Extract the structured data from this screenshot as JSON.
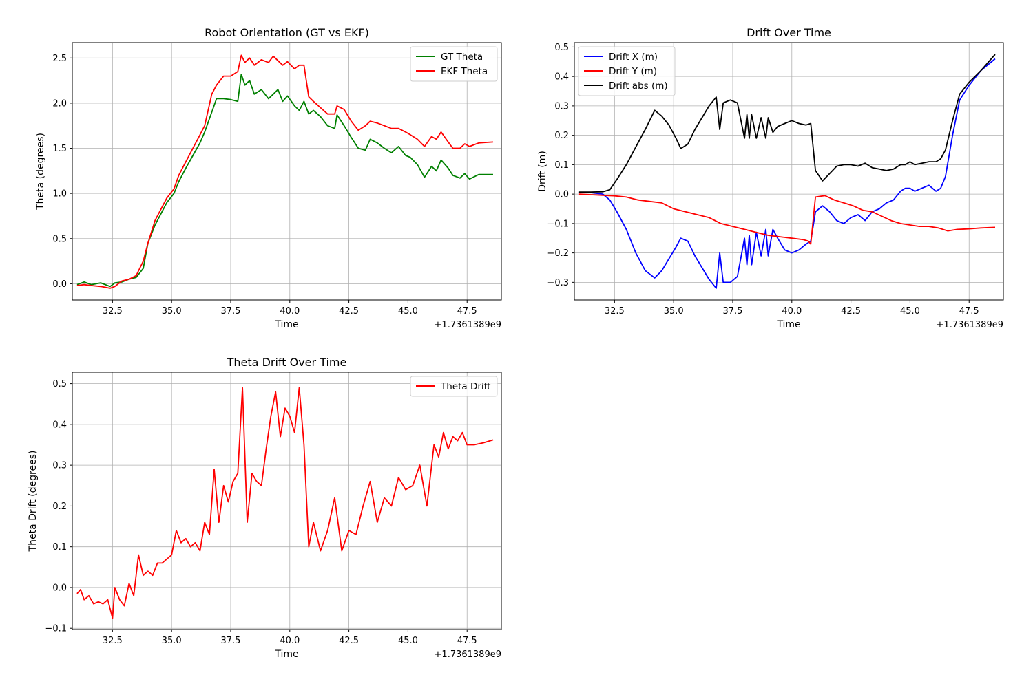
{
  "chart_data": [
    {
      "type": "line",
      "title": "Robot Orientation (GT vs EKF)",
      "xlabel": "Time",
      "ylabel": "Theta (degrees)",
      "offset_label": "+1.7361389e9",
      "xlim": [
        30.8,
        48.95
      ],
      "ylim": [
        -0.18,
        2.67
      ],
      "xticks": [
        32.5,
        35.0,
        37.5,
        40.0,
        42.5,
        45.0,
        47.5
      ],
      "xtick_labels": [
        "32.5",
        "35.0",
        "37.5",
        "40.0",
        "42.5",
        "45.0",
        "47.5"
      ],
      "yticks": [
        0.0,
        0.5,
        1.0,
        1.5,
        2.0,
        2.5
      ],
      "ytick_labels": [
        "0.0",
        "0.5",
        "1.0",
        "1.5",
        "2.0",
        "2.5"
      ],
      "grid": true,
      "legend": "upper right",
      "series": [
        {
          "name": "GT Theta",
          "color": "#008000",
          "x": [
            31.0,
            31.3,
            31.6,
            32.0,
            32.4,
            32.6,
            32.9,
            33.2,
            33.5,
            33.8,
            34.0,
            34.3,
            34.6,
            34.8,
            35.1,
            35.3,
            35.6,
            35.9,
            36.2,
            36.4,
            36.7,
            36.9,
            37.2,
            37.5,
            37.8,
            37.95,
            38.1,
            38.3,
            38.5,
            38.8,
            39.1,
            39.3,
            39.5,
            39.7,
            39.9,
            40.2,
            40.4,
            40.6,
            40.8,
            41.0,
            41.3,
            41.6,
            41.9,
            42.0,
            42.3,
            42.6,
            42.9,
            43.2,
            43.4,
            43.7,
            44.0,
            44.3,
            44.6,
            44.9,
            45.1,
            45.4,
            45.7,
            46.0,
            46.2,
            46.4,
            46.7,
            46.9,
            47.2,
            47.4,
            47.6,
            48.0,
            48.6
          ],
          "y": [
            -0.01,
            0.02,
            -0.01,
            0.01,
            -0.03,
            0.01,
            0.02,
            0.05,
            0.07,
            0.17,
            0.45,
            0.65,
            0.8,
            0.9,
            1.0,
            1.13,
            1.28,
            1.42,
            1.56,
            1.68,
            1.9,
            2.05,
            2.05,
            2.04,
            2.02,
            2.32,
            2.2,
            2.25,
            2.1,
            2.15,
            2.05,
            2.1,
            2.15,
            2.02,
            2.08,
            1.97,
            1.92,
            2.02,
            1.88,
            1.92,
            1.85,
            1.75,
            1.72,
            1.87,
            1.75,
            1.62,
            1.5,
            1.48,
            1.6,
            1.56,
            1.5,
            1.45,
            1.52,
            1.42,
            1.4,
            1.32,
            1.18,
            1.3,
            1.25,
            1.37,
            1.28,
            1.2,
            1.17,
            1.22,
            1.16,
            1.21,
            1.21
          ]
        },
        {
          "name": "EKF Theta",
          "color": "#ff0000",
          "x": [
            31.0,
            31.3,
            31.6,
            32.0,
            32.4,
            32.6,
            32.9,
            33.2,
            33.5,
            33.8,
            34.0,
            34.3,
            34.6,
            34.8,
            35.1,
            35.3,
            35.6,
            35.9,
            36.2,
            36.4,
            36.7,
            36.9,
            37.2,
            37.5,
            37.8,
            37.95,
            38.1,
            38.3,
            38.5,
            38.8,
            39.1,
            39.3,
            39.5,
            39.7,
            39.9,
            40.2,
            40.4,
            40.6,
            40.8,
            41.0,
            41.3,
            41.6,
            41.9,
            42.0,
            42.3,
            42.6,
            42.9,
            43.2,
            43.4,
            43.7,
            44.0,
            44.3,
            44.6,
            44.9,
            45.1,
            45.4,
            45.7,
            46.0,
            46.2,
            46.4,
            46.7,
            46.9,
            47.2,
            47.4,
            47.6,
            48.0,
            48.6
          ],
          "y": [
            -0.02,
            -0.01,
            -0.02,
            -0.03,
            -0.05,
            -0.03,
            0.03,
            0.05,
            0.09,
            0.25,
            0.45,
            0.7,
            0.85,
            0.95,
            1.05,
            1.2,
            1.35,
            1.5,
            1.65,
            1.75,
            2.1,
            2.2,
            2.3,
            2.3,
            2.35,
            2.53,
            2.45,
            2.5,
            2.42,
            2.48,
            2.45,
            2.52,
            2.47,
            2.42,
            2.46,
            2.38,
            2.42,
            2.42,
            2.07,
            2.02,
            1.95,
            1.88,
            1.88,
            1.97,
            1.93,
            1.8,
            1.7,
            1.75,
            1.8,
            1.78,
            1.75,
            1.72,
            1.72,
            1.68,
            1.65,
            1.6,
            1.52,
            1.63,
            1.6,
            1.68,
            1.57,
            1.5,
            1.5,
            1.55,
            1.52,
            1.56,
            1.57
          ]
        }
      ]
    },
    {
      "type": "line",
      "title": "Drift Over Time",
      "xlabel": "Time",
      "ylabel": "Drift (m)",
      "offset_label": "+1.7361389e9",
      "xlim": [
        30.8,
        48.95
      ],
      "ylim": [
        -0.36,
        0.515
      ],
      "xticks": [
        32.5,
        35.0,
        37.5,
        40.0,
        42.5,
        45.0,
        47.5
      ],
      "xtick_labels": [
        "32.5",
        "35.0",
        "37.5",
        "40.0",
        "42.5",
        "45.0",
        "47.5"
      ],
      "yticks": [
        -0.3,
        -0.2,
        -0.1,
        0.0,
        0.1,
        0.2,
        0.3,
        0.4,
        0.5
      ],
      "ytick_labels": [
        "−0.3",
        "−0.2",
        "−0.1",
        "0.0",
        "0.1",
        "0.2",
        "0.3",
        "0.4",
        "0.5"
      ],
      "grid": true,
      "legend": "upper left",
      "series": [
        {
          "name": "Drift X (m)",
          "color": "#0000ff",
          "x": [
            31.0,
            31.5,
            32.0,
            32.3,
            32.6,
            33.0,
            33.4,
            33.8,
            34.2,
            34.5,
            34.8,
            35.1,
            35.3,
            35.6,
            35.9,
            36.2,
            36.5,
            36.8,
            36.95,
            37.1,
            37.4,
            37.7,
            38.0,
            38.1,
            38.2,
            38.3,
            38.5,
            38.7,
            38.9,
            39.0,
            39.2,
            39.4,
            39.7,
            40.0,
            40.3,
            40.6,
            40.8,
            41.0,
            41.3,
            41.6,
            41.9,
            42.2,
            42.5,
            42.8,
            43.1,
            43.4,
            43.7,
            44.0,
            44.3,
            44.6,
            44.8,
            45.0,
            45.2,
            45.5,
            45.8,
            46.1,
            46.3,
            46.5,
            46.8,
            47.1,
            47.5,
            48.0,
            48.6
          ],
          "y": [
            0.005,
            0.005,
            0.0,
            -0.02,
            -0.06,
            -0.12,
            -0.2,
            -0.26,
            -0.285,
            -0.26,
            -0.22,
            -0.18,
            -0.15,
            -0.16,
            -0.21,
            -0.25,
            -0.29,
            -0.32,
            -0.2,
            -0.3,
            -0.3,
            -0.28,
            -0.15,
            -0.24,
            -0.14,
            -0.24,
            -0.13,
            -0.21,
            -0.12,
            -0.21,
            -0.12,
            -0.15,
            -0.19,
            -0.2,
            -0.19,
            -0.17,
            -0.16,
            -0.06,
            -0.04,
            -0.06,
            -0.09,
            -0.1,
            -0.08,
            -0.07,
            -0.09,
            -0.06,
            -0.05,
            -0.03,
            -0.02,
            0.01,
            0.02,
            0.02,
            0.01,
            0.02,
            0.03,
            0.01,
            0.02,
            0.06,
            0.2,
            0.32,
            0.37,
            0.42,
            0.46
          ]
        },
        {
          "name": "Drift Y (m)",
          "color": "#ff0000",
          "x": [
            31.0,
            31.5,
            32.0,
            32.5,
            33.0,
            33.5,
            34.0,
            34.5,
            35.0,
            35.5,
            36.0,
            36.5,
            37.0,
            37.5,
            38.0,
            38.5,
            39.0,
            39.5,
            40.0,
            40.5,
            40.7,
            40.8,
            41.0,
            41.4,
            41.8,
            42.2,
            42.6,
            43.0,
            43.4,
            43.8,
            44.2,
            44.6,
            45.0,
            45.4,
            45.8,
            46.2,
            46.6,
            47.0,
            47.5,
            48.0,
            48.6
          ],
          "y": [
            0.0,
            -0.002,
            -0.004,
            -0.006,
            -0.01,
            -0.02,
            -0.025,
            -0.03,
            -0.05,
            -0.06,
            -0.07,
            -0.08,
            -0.1,
            -0.11,
            -0.12,
            -0.13,
            -0.14,
            -0.145,
            -0.15,
            -0.155,
            -0.16,
            -0.17,
            -0.01,
            -0.005,
            -0.02,
            -0.03,
            -0.04,
            -0.055,
            -0.06,
            -0.075,
            -0.09,
            -0.1,
            -0.105,
            -0.11,
            -0.11,
            -0.115,
            -0.125,
            -0.12,
            -0.118,
            -0.115,
            -0.113
          ]
        },
        {
          "name": "Drift abs (m)",
          "color": "#000000",
          "x": [
            31.0,
            31.5,
            32.0,
            32.3,
            32.6,
            33.0,
            33.4,
            33.8,
            34.2,
            34.5,
            34.8,
            35.1,
            35.3,
            35.6,
            35.9,
            36.2,
            36.5,
            36.8,
            36.95,
            37.1,
            37.4,
            37.7,
            38.0,
            38.1,
            38.2,
            38.3,
            38.5,
            38.7,
            38.9,
            39.0,
            39.2,
            39.4,
            39.7,
            40.0,
            40.3,
            40.6,
            40.8,
            41.0,
            41.3,
            41.6,
            41.9,
            42.2,
            42.5,
            42.8,
            43.1,
            43.4,
            43.7,
            44.0,
            44.3,
            44.6,
            44.8,
            45.0,
            45.2,
            45.5,
            45.8,
            46.1,
            46.3,
            46.5,
            46.8,
            47.1,
            47.5,
            48.0,
            48.6
          ],
          "y": [
            0.007,
            0.007,
            0.008,
            0.015,
            0.05,
            0.1,
            0.16,
            0.22,
            0.285,
            0.265,
            0.235,
            0.19,
            0.155,
            0.17,
            0.22,
            0.26,
            0.3,
            0.33,
            0.22,
            0.31,
            0.32,
            0.31,
            0.19,
            0.27,
            0.19,
            0.27,
            0.19,
            0.26,
            0.19,
            0.26,
            0.21,
            0.23,
            0.24,
            0.25,
            0.24,
            0.235,
            0.24,
            0.08,
            0.045,
            0.07,
            0.095,
            0.1,
            0.1,
            0.095,
            0.105,
            0.09,
            0.085,
            0.08,
            0.085,
            0.1,
            0.1,
            0.11,
            0.1,
            0.105,
            0.11,
            0.11,
            0.12,
            0.15,
            0.25,
            0.34,
            0.38,
            0.42,
            0.475
          ]
        }
      ]
    },
    {
      "type": "line",
      "title": "Theta Drift Over Time",
      "xlabel": "Time",
      "ylabel": "Theta Drift (degrees)",
      "offset_label": "+1.7361389e9",
      "xlim": [
        30.8,
        48.95
      ],
      "ylim": [
        -0.103,
        0.528
      ],
      "xticks": [
        32.5,
        35.0,
        37.5,
        40.0,
        42.5,
        45.0,
        47.5
      ],
      "xtick_labels": [
        "32.5",
        "35.0",
        "37.5",
        "40.0",
        "42.5",
        "45.0",
        "47.5"
      ],
      "yticks": [
        -0.1,
        0.0,
        0.1,
        0.2,
        0.3,
        0.4,
        0.5
      ],
      "ytick_labels": [
        "−0.1",
        "0.0",
        "0.1",
        "0.2",
        "0.3",
        "0.4",
        "0.5"
      ],
      "grid": true,
      "legend": "upper right",
      "series": [
        {
          "name": "Theta Drift",
          "color": "#ff0000",
          "x": [
            31.0,
            31.15,
            31.3,
            31.5,
            31.7,
            31.9,
            32.1,
            32.3,
            32.5,
            32.6,
            32.8,
            33.0,
            33.2,
            33.4,
            33.6,
            33.8,
            34.0,
            34.2,
            34.4,
            34.6,
            34.8,
            35.0,
            35.2,
            35.4,
            35.6,
            35.8,
            36.0,
            36.2,
            36.4,
            36.6,
            36.8,
            37.0,
            37.2,
            37.4,
            37.6,
            37.8,
            38.0,
            38.2,
            38.4,
            38.6,
            38.8,
            39.0,
            39.2,
            39.4,
            39.6,
            39.8,
            40.0,
            40.2,
            40.4,
            40.6,
            40.8,
            41.0,
            41.3,
            41.6,
            41.9,
            42.2,
            42.5,
            42.8,
            43.1,
            43.4,
            43.7,
            44.0,
            44.3,
            44.6,
            44.9,
            45.2,
            45.5,
            45.8,
            46.1,
            46.3,
            46.5,
            46.7,
            46.9,
            47.1,
            47.3,
            47.5,
            47.8,
            48.2,
            48.6
          ],
          "y": [
            -0.015,
            -0.005,
            -0.03,
            -0.02,
            -0.04,
            -0.035,
            -0.04,
            -0.03,
            -0.075,
            0.0,
            -0.03,
            -0.045,
            0.01,
            -0.02,
            0.08,
            0.03,
            0.04,
            0.03,
            0.06,
            0.06,
            0.07,
            0.08,
            0.14,
            0.11,
            0.12,
            0.1,
            0.11,
            0.09,
            0.16,
            0.13,
            0.29,
            0.16,
            0.25,
            0.21,
            0.26,
            0.28,
            0.49,
            0.16,
            0.28,
            0.26,
            0.25,
            0.34,
            0.42,
            0.48,
            0.37,
            0.44,
            0.42,
            0.38,
            0.49,
            0.35,
            0.1,
            0.16,
            0.09,
            0.14,
            0.22,
            0.09,
            0.14,
            0.13,
            0.2,
            0.26,
            0.16,
            0.22,
            0.2,
            0.27,
            0.24,
            0.25,
            0.3,
            0.2,
            0.35,
            0.32,
            0.38,
            0.34,
            0.37,
            0.36,
            0.38,
            0.35,
            0.35,
            0.355,
            0.362
          ]
        }
      ]
    }
  ]
}
